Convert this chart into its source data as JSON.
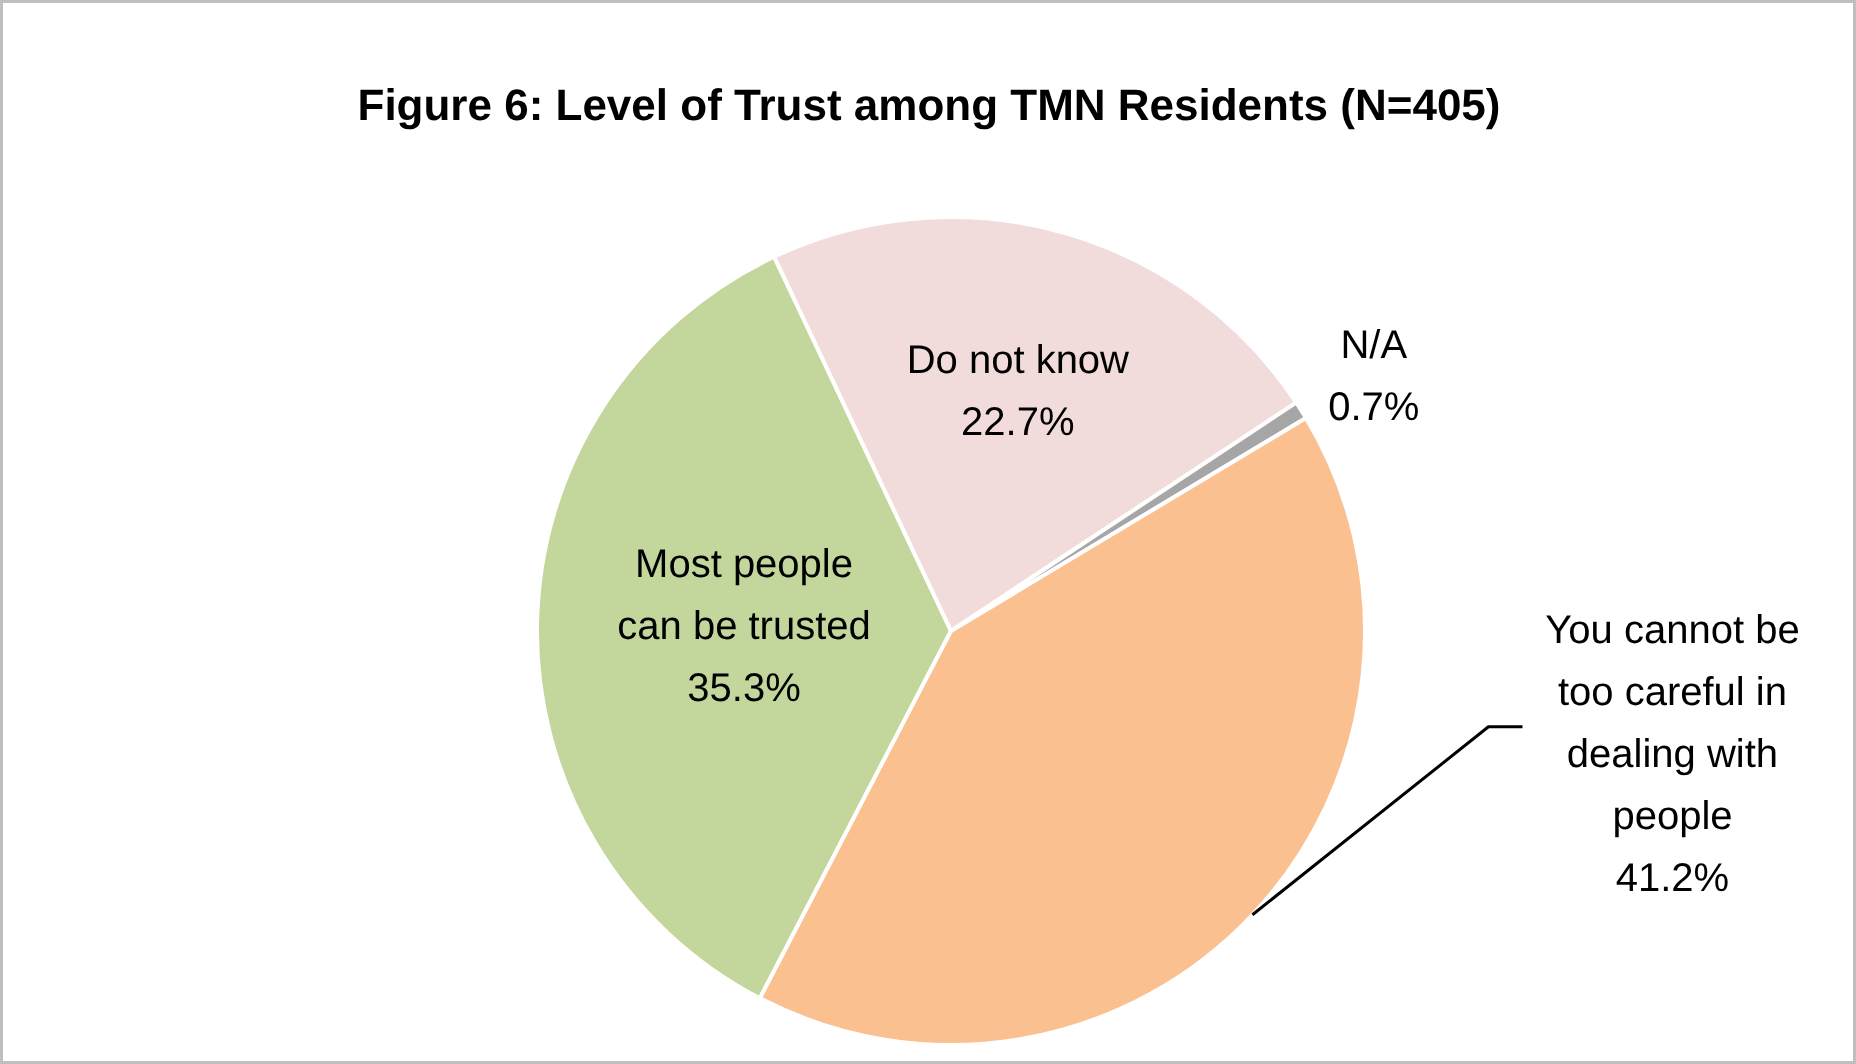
{
  "chart_data": {
    "type": "pie",
    "title": "Figure 6: Level of Trust among TMN Residents (N=405)",
    "categories": [
      "Most people can be trusted",
      "Do not know",
      "N/A",
      "You cannot be too careful in dealing with people"
    ],
    "values": [
      35.3,
      22.7,
      0.7,
      41.2
    ],
    "colors": [
      "#c3d69b",
      "#f2dcdb",
      "#a6a6a6",
      "#fac090"
    ],
    "value_labels": [
      "35.3%",
      "22.7%",
      "0.7%",
      "41.2%"
    ]
  }
}
